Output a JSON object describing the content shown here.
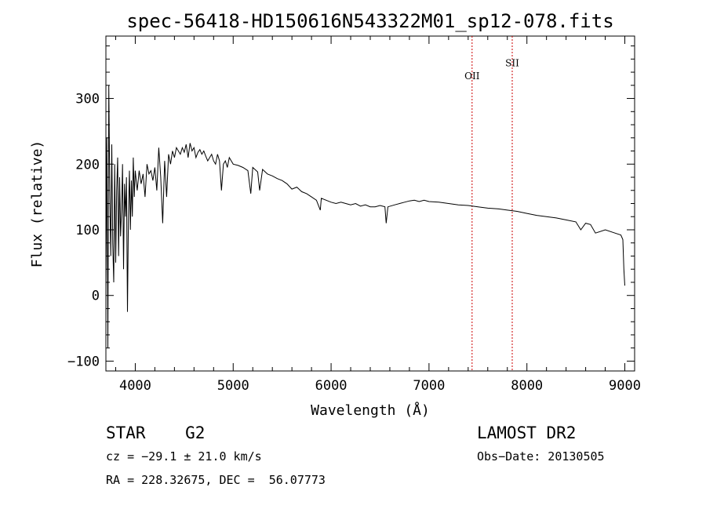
{
  "chart_data": {
    "type": "line",
    "title": "spec-56418-HD150616N543322M01_sp12-078.fits",
    "xlabel": "Wavelength (Å)",
    "ylabel": "Flux (relative)",
    "xlim": [
      3700,
      9100
    ],
    "ylim": [
      -115,
      395
    ],
    "x_ticks": [
      4000,
      5000,
      6000,
      7000,
      8000,
      9000
    ],
    "y_ticks": [
      -100,
      0,
      100,
      200,
      300
    ],
    "grid": false,
    "series": [
      {
        "x": [
          3700,
          3710,
          3720,
          3730,
          3740,
          3750,
          3760,
          3770,
          3780,
          3790,
          3800,
          3810,
          3820,
          3830,
          3840,
          3850,
          3860,
          3870,
          3880,
          3890,
          3900,
          3910,
          3920,
          3930,
          3940,
          3950,
          3960,
          3970,
          3980,
          3990,
          4000,
          4020,
          4040,
          4060,
          4080,
          4100,
          4120,
          4140,
          4160,
          4180,
          4200,
          4220,
          4240,
          4260,
          4280,
          4300,
          4320,
          4340,
          4360,
          4380,
          4400,
          4420,
          4440,
          4460,
          4480,
          4500,
          4520,
          4540,
          4560,
          4580,
          4600,
          4620,
          4640,
          4660,
          4680,
          4700,
          4720,
          4740,
          4760,
          4780,
          4800,
          4820,
          4840,
          4860,
          4880,
          4900,
          4920,
          4940,
          4960,
          4980,
          5000,
          5050,
          5100,
          5150,
          5180,
          5200,
          5250,
          5270,
          5300,
          5350,
          5400,
          5450,
          5500,
          5550,
          5600,
          5650,
          5700,
          5750,
          5800,
          5850,
          5890,
          5900,
          5950,
          6000,
          6050,
          6100,
          6150,
          6200,
          6250,
          6300,
          6350,
          6400,
          6450,
          6500,
          6550,
          6563,
          6580,
          6650,
          6700,
          6750,
          6800,
          6850,
          6900,
          6950,
          7000,
          7100,
          7200,
          7300,
          7400,
          7500,
          7600,
          7700,
          7800,
          7900,
          8000,
          8100,
          8200,
          8300,
          8400,
          8500,
          8550,
          8600,
          8650,
          8700,
          8800,
          8900,
          8960,
          8980,
          8990,
          9000
        ],
        "values": [
          10,
          240,
          -80,
          320,
          150,
          60,
          230,
          80,
          20,
          200,
          50,
          160,
          210,
          60,
          180,
          90,
          130,
          200,
          40,
          170,
          120,
          180,
          -25,
          120,
          190,
          100,
          175,
          120,
          210,
          150,
          190,
          160,
          190,
          170,
          185,
          150,
          200,
          185,
          190,
          175,
          195,
          160,
          225,
          180,
          110,
          205,
          150,
          215,
          200,
          220,
          210,
          225,
          220,
          215,
          225,
          218,
          230,
          210,
          232,
          220,
          225,
          210,
          218,
          222,
          215,
          220,
          212,
          205,
          210,
          215,
          205,
          200,
          215,
          205,
          160,
          200,
          205,
          195,
          210,
          205,
          200,
          198,
          195,
          190,
          155,
          195,
          188,
          160,
          192,
          185,
          182,
          178,
          175,
          170,
          162,
          165,
          158,
          155,
          150,
          145,
          130,
          148,
          145,
          142,
          140,
          142,
          140,
          138,
          140,
          136,
          138,
          135,
          135,
          137,
          135,
          110,
          135,
          138,
          140,
          142,
          144,
          145,
          143,
          145,
          143,
          142,
          140,
          138,
          137,
          135,
          133,
          132,
          130,
          128,
          125,
          122,
          120,
          118,
          115,
          112,
          100,
          110,
          108,
          95,
          100,
          95,
          92,
          85,
          40,
          15
        ]
      }
    ],
    "annotations": [
      {
        "label": "OII",
        "x": 7440,
        "label_y": 335
      },
      {
        "label": "SII",
        "x": 7850,
        "label_y": 355
      }
    ],
    "colors": {
      "line": "#000000",
      "annotation": "#cc0000"
    }
  },
  "footer": {
    "obj_class": "STAR    G2",
    "survey": "LAMOST DR2",
    "cz": "cz = −29.1 ± 21.0 km/s",
    "obs_date": "Obs−Date: 20130505",
    "radec": "RA = 228.32675, DEC =  56.07773"
  }
}
